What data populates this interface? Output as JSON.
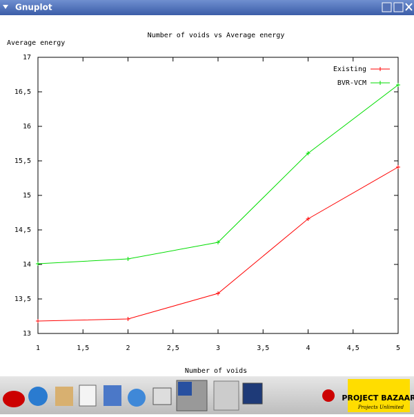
{
  "window": {
    "title": "Gnuplot"
  },
  "chart_data": {
    "type": "line",
    "title": "Number of voids vs Average energy",
    "x_label": "Number of voids",
    "y_label": "Average energy",
    "x": [
      1,
      2,
      3,
      4,
      5
    ],
    "series": [
      {
        "name": "Existing",
        "color": "#ff0000",
        "values": [
          13.18,
          13.21,
          13.58,
          14.66,
          15.41
        ]
      },
      {
        "name": "BVR-VCM",
        "color": "#00dd00",
        "values": [
          14.01,
          14.08,
          14.32,
          15.61,
          16.6
        ]
      }
    ],
    "xlim": [
      1,
      5
    ],
    "xticks": [
      1,
      {
        "value": 1.5,
        "label": "1,5"
      },
      2,
      {
        "value": 2.5,
        "label": "2,5"
      },
      3,
      {
        "value": 3.5,
        "label": "3,5"
      },
      4,
      {
        "value": 4.5,
        "label": "4,5"
      },
      5
    ],
    "ylim": [
      13,
      17
    ],
    "yticks": [
      13,
      {
        "value": 13.5,
        "label": "13,5"
      },
      14,
      {
        "value": 14.5,
        "label": "14,5"
      },
      15,
      {
        "value": 15.5,
        "label": "15,5"
      },
      16,
      {
        "value": 16.5,
        "label": "16,5"
      },
      17
    ],
    "grid": false,
    "legend": "top-right"
  },
  "taskbar": {
    "logo": "PROJECT BAZAAR",
    "tagline": "Projects Unlimited"
  }
}
